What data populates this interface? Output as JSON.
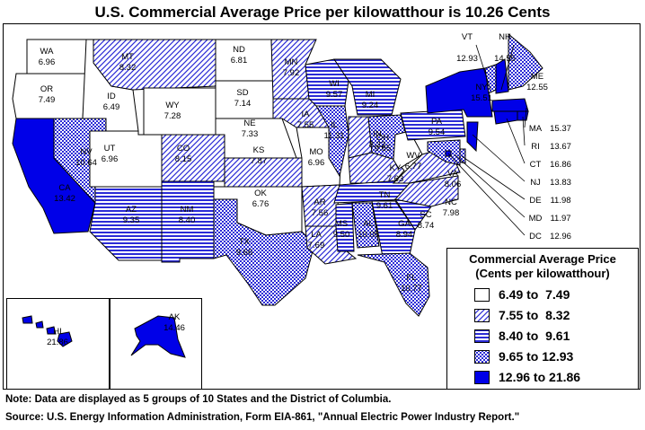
{
  "title": "U.S. Commercial Average Price per kilowatthour is 10.26 Cents",
  "legend": {
    "title_line1": "Commercial Average Price",
    "title_line2": "(Cents per kilowatthour)",
    "classes": [
      {
        "label": "6.49 to  7.49",
        "pattern": "white"
      },
      {
        "label": "7.55 to  8.32",
        "pattern": "diagonal"
      },
      {
        "label": "8.40 to  9.61",
        "pattern": "horizontal"
      },
      {
        "label": "9.65 to 12.93",
        "pattern": "crosshatch"
      },
      {
        "label": "12.96 to 21.86",
        "pattern": "solid"
      }
    ]
  },
  "colors": {
    "fill": "#2b2bd6",
    "solid": "#0000e8",
    "line": "#4040d0"
  },
  "states": {
    "WA": {
      "name": "WA",
      "value": "6.96",
      "cls": 0
    },
    "OR": {
      "name": "OR",
      "value": "7.49",
      "cls": 0
    },
    "CA": {
      "name": "CA",
      "value": "13.42",
      "cls": 4
    },
    "ID": {
      "name": "ID",
      "value": "6.49",
      "cls": 0
    },
    "NV": {
      "name": "NV",
      "value": "10.64",
      "cls": 3
    },
    "MT": {
      "name": "MT",
      "value": "8.32",
      "cls": 1
    },
    "WY": {
      "name": "WY",
      "value": "7.28",
      "cls": 0
    },
    "UT": {
      "name": "UT",
      "value": "6.96",
      "cls": 0
    },
    "CO": {
      "name": "CO",
      "value": "8.15",
      "cls": 1
    },
    "AZ": {
      "name": "AZ",
      "value": "9.35",
      "cls": 2
    },
    "NM": {
      "name": "NM",
      "value": "8.40",
      "cls": 2
    },
    "ND": {
      "name": "ND",
      "value": "6.81",
      "cls": 0
    },
    "SD": {
      "name": "SD",
      "value": "7.14",
      "cls": 0
    },
    "NE": {
      "name": "NE",
      "value": "7.33",
      "cls": 0
    },
    "KS": {
      "name": "KS",
      "value": "7.87",
      "cls": 1
    },
    "OK": {
      "name": "OK",
      "value": "6.76",
      "cls": 0
    },
    "TX": {
      "name": "TX",
      "value": "9.66",
      "cls": 3
    },
    "MN": {
      "name": "MN",
      "value": "7.92",
      "cls": 1
    },
    "IA": {
      "name": "IA",
      "value": "7.55",
      "cls": 1
    },
    "MO": {
      "name": "MO",
      "value": "6.96",
      "cls": 0
    },
    "AR": {
      "name": "AR",
      "value": "7.56",
      "cls": 1
    },
    "LA": {
      "name": "LA",
      "value": "7.69",
      "cls": 1
    },
    "WI": {
      "name": "WI",
      "value": "9.57",
      "cls": 2
    },
    "IL": {
      "name": "IL",
      "value": "11.31",
      "cls": 3
    },
    "MI": {
      "name": "MI",
      "value": "9.24",
      "cls": 2
    },
    "IN": {
      "name": "IN",
      "value": "8.32",
      "cls": 1
    },
    "OH": {
      "name": "OH",
      "value": "9.65",
      "cls": 3
    },
    "KY": {
      "name": "KY",
      "value": "7.63",
      "cls": 1
    },
    "TN": {
      "name": "TN",
      "value": "9.61",
      "cls": 2
    },
    "MS": {
      "name": "MS",
      "value": "9.50",
      "cls": 2
    },
    "AL": {
      "name": "AL",
      "value": "10.05",
      "cls": 3
    },
    "GA": {
      "name": "GA",
      "value": "8.94",
      "cls": 2
    },
    "FL": {
      "name": "FL",
      "value": "10.77",
      "cls": 3
    },
    "SC": {
      "name": "SC",
      "value": "8.74",
      "cls": 2
    },
    "NC": {
      "name": "NC",
      "value": "7.98",
      "cls": 1
    },
    "VA": {
      "name": "VA",
      "value": "8.06",
      "cls": 1
    },
    "WV": {
      "name": "WV",
      "value": "6.77",
      "cls": 0
    },
    "PA": {
      "name": "PA",
      "value": "9.54",
      "cls": 2
    },
    "NY": {
      "name": "NY",
      "value": "15.51",
      "cls": 4
    },
    "VT": {
      "name": "VT",
      "value": "12.93",
      "cls": 3
    },
    "NH": {
      "name": "NH",
      "value": "14.55",
      "cls": 4
    },
    "ME": {
      "name": "ME",
      "value": "12.55",
      "cls": 3
    },
    "MA": {
      "name": "MA",
      "value": "15.37",
      "cls": 4
    },
    "RI": {
      "name": "RI",
      "value": "13.67",
      "cls": 4
    },
    "CT": {
      "name": "CT",
      "value": "16.86",
      "cls": 4
    },
    "NJ": {
      "name": "NJ",
      "value": "13.83",
      "cls": 4
    },
    "DE": {
      "name": "DE",
      "value": "11.98",
      "cls": 3
    },
    "MD": {
      "name": "MD",
      "value": "11.97",
      "cls": 3
    },
    "DC": {
      "name": "DC",
      "value": "12.96",
      "cls": 4
    },
    "HI": {
      "name": "HI",
      "value": "21.86",
      "cls": 4
    },
    "AK": {
      "name": "AK",
      "value": "14.46",
      "cls": 4
    }
  },
  "note": "Note: Data are displayed as 5 groups of 10 States and the District of Columbia.",
  "source": "Source: U.S. Energy Information Administration, Form EIA-861, \"Annual Electric Power Industry Report.\""
}
